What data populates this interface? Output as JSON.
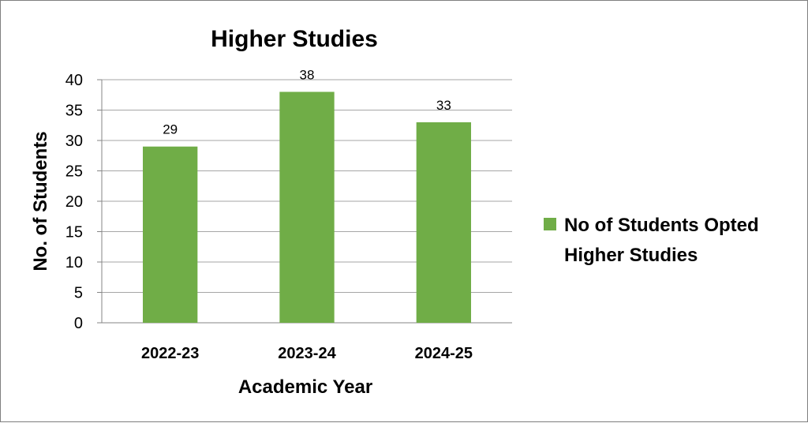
{
  "chart_data": {
    "type": "bar",
    "title": "Higher Studies",
    "xlabel": "Academic Year",
    "ylabel": "No. of Students",
    "categories": [
      "2022-23",
      "2023-24",
      "2024-25"
    ],
    "series": [
      {
        "name": "No of Students Opted Higher Studies",
        "values": [
          29,
          38,
          33
        ],
        "color": "#70ad47"
      }
    ],
    "ylim": [
      0,
      40
    ],
    "yticks": [
      "0",
      "5",
      "10",
      "15",
      "20",
      "25",
      "30",
      "35",
      "40"
    ],
    "data_labels": [
      "29",
      "38",
      "33"
    ],
    "legend": {
      "position": "right",
      "lines": [
        "No of Students Opted",
        "Higher Studies"
      ]
    },
    "grid": true
  }
}
